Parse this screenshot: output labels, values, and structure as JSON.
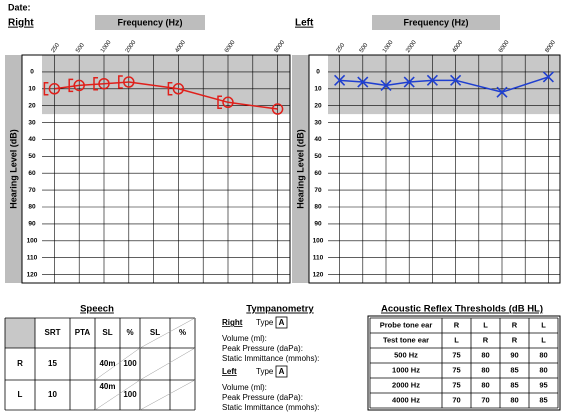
{
  "date_label": "Date:",
  "chart_data": [
    {
      "type": "line",
      "title": "Right",
      "x_label": "Frequency (Hz)",
      "y_label": "Hearing Level (dB)",
      "categories": [
        250,
        500,
        1000,
        2000,
        null,
        4000,
        null,
        6000,
        null,
        8000
      ],
      "ylim": [
        -10,
        125
      ],
      "inverted": true,
      "yticks": [
        0,
        10,
        20,
        30,
        40,
        50,
        60,
        70,
        80,
        90,
        100,
        110,
        120
      ],
      "shade": [
        -10,
        25
      ],
      "grid": true,
      "series": [
        {
          "color": "#e0201b",
          "marker": "circle",
          "values": [
            10,
            8,
            7,
            6,
            null,
            10,
            null,
            18,
            null,
            22
          ]
        }
      ]
    },
    {
      "type": "line",
      "title": "Left",
      "x_label": "Frequency (Hz)",
      "y_label": "Hearing Level (dB)",
      "categories": [
        250,
        500,
        1000,
        2000,
        null,
        4000,
        null,
        6000,
        null,
        8000
      ],
      "ylim": [
        -10,
        125
      ],
      "inverted": true,
      "yticks": [
        0,
        10,
        20,
        30,
        40,
        50,
        60,
        70,
        80,
        90,
        100,
        110,
        120
      ],
      "shade": [
        -10,
        25
      ],
      "grid": true,
      "series": [
        {
          "color": "#1f3fd0",
          "marker": "x",
          "values": [
            5,
            6,
            8,
            6,
            5,
            5,
            null,
            12,
            null,
            3
          ]
        }
      ]
    }
  ],
  "speech": {
    "title": "Speech",
    "headers": [
      "SRT",
      "PTA",
      "SL",
      "%",
      "SL",
      "%"
    ],
    "rows": [
      [
        "R",
        15,
        null,
        "40m",
        100,
        null,
        null
      ],
      [
        "L",
        10,
        null,
        "40m",
        100,
        null,
        null
      ]
    ]
  },
  "tympanometry": {
    "title": "Tympanometry",
    "ears": [
      {
        "ear": "Right",
        "type_label": "Type",
        "type": "A",
        "fields": [
          "Volume (ml):",
          "Peak Pressure (daPa):",
          "Static Immittance (mmohs):"
        ]
      },
      {
        "ear": "Left",
        "type_label": "Type",
        "type": "A",
        "fields": [
          "Volume (ml):",
          "Peak Pressure (daPa):",
          "Static Immittance (mmohs):"
        ]
      }
    ]
  },
  "reflex": {
    "title": "Acoustic Reflex Thresholds (dB HL)",
    "header_rows": [
      [
        "Probe tone ear",
        "R",
        "L",
        "R",
        "L"
      ],
      [
        "Test tone ear",
        "L",
        "R",
        "R",
        "L"
      ]
    ],
    "rows": [
      [
        "500 Hz",
        75,
        80,
        90,
        80
      ],
      [
        "1000 Hz",
        75,
        80,
        85,
        80
      ],
      [
        "2000 Hz",
        75,
        80,
        85,
        95
      ],
      [
        "4000 Hz",
        70,
        70,
        80,
        85
      ]
    ]
  }
}
